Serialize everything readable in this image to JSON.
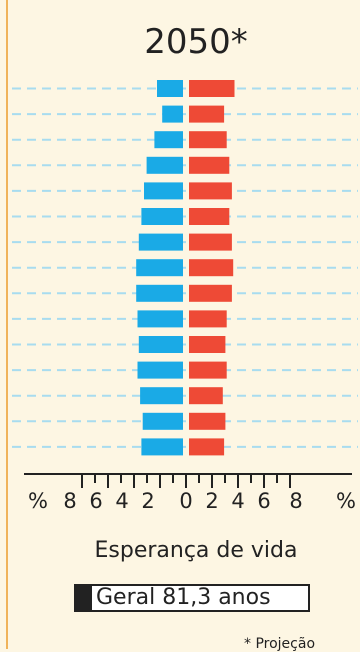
{
  "chart_data": {
    "type": "bar",
    "title": "2050*",
    "orientation": "population-pyramid",
    "x_unit": "%",
    "x_ticks": [
      "%",
      "8",
      "6",
      "4",
      "2",
      "0",
      "2",
      "4",
      "6",
      "8",
      "%"
    ],
    "xlim": [
      -8,
      8
    ],
    "series": [
      {
        "side": "left",
        "color": "#1aaae6",
        "values": [
          2.0,
          1.6,
          2.2,
          2.8,
          3.0,
          3.2,
          3.4,
          3.6,
          3.6,
          3.5,
          3.4,
          3.5,
          3.3,
          3.1,
          3.2
        ]
      },
      {
        "side": "right",
        "color": "#ee4a36",
        "values": [
          3.5,
          2.7,
          2.9,
          3.1,
          3.3,
          3.1,
          3.3,
          3.4,
          3.3,
          2.9,
          2.8,
          2.9,
          2.6,
          2.8,
          2.7
        ]
      }
    ],
    "grid": true
  },
  "life_expectancy": {
    "label": "Esperança de vida",
    "value": "Geral 81,3 anos"
  },
  "footnote": "* Projeção",
  "colors": {
    "background": "#fdf6e3",
    "frame": "#f0b35a",
    "grid": "#a8dcef"
  }
}
